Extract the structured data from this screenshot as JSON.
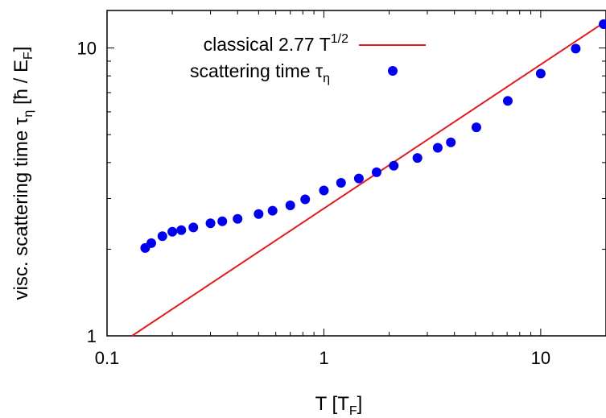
{
  "chart_data": {
    "type": "scatter",
    "xscale": "log",
    "yscale": "log",
    "xlim": [
      0.1,
      20
    ],
    "ylim": [
      1,
      13.5
    ],
    "xlabel": {
      "main": "T [T",
      "sub": "F",
      "end": "]"
    },
    "ylabel": {
      "main": "visc. scattering time τ",
      "sub": "η",
      "mid": " [ħ / E",
      "sub2": "F",
      "end": "]"
    },
    "x_ticks": [
      {
        "value": 0.1,
        "label": "0.1"
      },
      {
        "value": 1,
        "label": "1"
      },
      {
        "value": 10,
        "label": "10"
      }
    ],
    "y_ticks": [
      {
        "value": 1,
        "label": "1"
      },
      {
        "value": 10,
        "label": "10"
      }
    ],
    "grid": false,
    "legend_position": "top-left",
    "series": [
      {
        "name": "classical 2.77 T1/2",
        "legend": {
          "main": "classical 2.77 T",
          "sup": "1/2"
        },
        "kind": "line",
        "color": "#e31a1c",
        "coef": 2.77,
        "exponent": 0.5
      },
      {
        "name": "scattering time τη",
        "legend": {
          "main": "scattering time τ",
          "sub": "η"
        },
        "kind": "points",
        "color": "#0000ee",
        "points": [
          [
            0.15,
            2.02
          ],
          [
            0.16,
            2.1
          ],
          [
            0.18,
            2.22
          ],
          [
            0.2,
            2.3
          ],
          [
            0.22,
            2.33
          ],
          [
            0.25,
            2.38
          ],
          [
            0.3,
            2.46
          ],
          [
            0.34,
            2.5
          ],
          [
            0.4,
            2.55
          ],
          [
            0.5,
            2.65
          ],
          [
            0.58,
            2.72
          ],
          [
            0.7,
            2.84
          ],
          [
            0.82,
            2.98
          ],
          [
            1.0,
            3.2
          ],
          [
            1.2,
            3.4
          ],
          [
            1.45,
            3.52
          ],
          [
            1.75,
            3.7
          ],
          [
            2.1,
            3.9
          ],
          [
            2.7,
            4.15
          ],
          [
            3.35,
            4.5
          ],
          [
            3.85,
            4.7
          ],
          [
            5.05,
            5.3
          ],
          [
            7.05,
            6.55
          ],
          [
            10.0,
            8.15
          ],
          [
            14.5,
            9.95
          ],
          [
            19.5,
            12.1
          ]
        ]
      }
    ]
  }
}
